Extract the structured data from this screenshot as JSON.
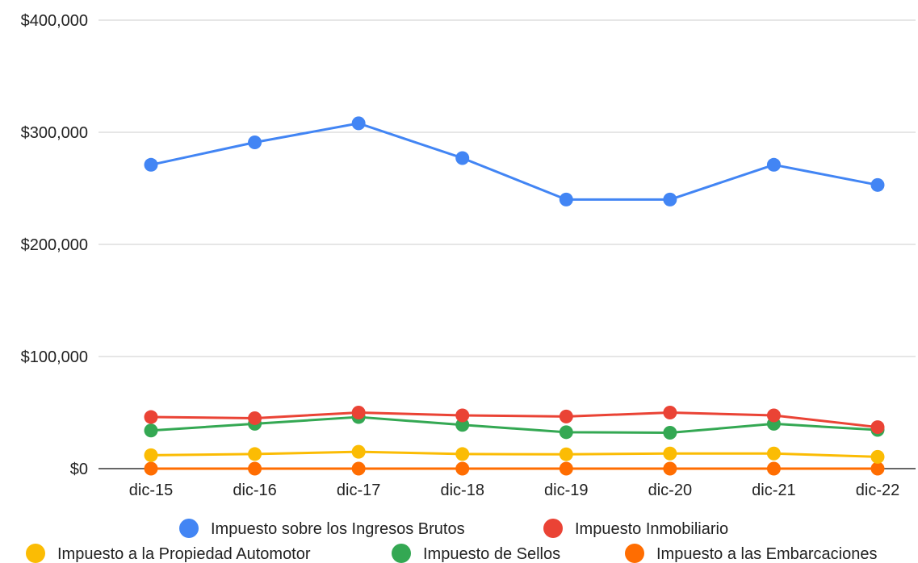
{
  "chart_data": {
    "type": "line",
    "categories": [
      "dic-15",
      "dic-16",
      "dic-17",
      "dic-18",
      "dic-19",
      "dic-20",
      "dic-21",
      "dic-22"
    ],
    "ylim": [
      0,
      400000
    ],
    "yticks": [
      0,
      100000,
      200000,
      300000,
      400000
    ],
    "ytick_labels": [
      "$0",
      "$100,000",
      "$200,000",
      "$300,000",
      "$400,000"
    ],
    "grid": true,
    "legend_position": "bottom",
    "series": [
      {
        "name": "Impuesto sobre los Ingresos Brutos",
        "color": "#4285F4",
        "values": [
          271000,
          291000,
          308000,
          277000,
          240000,
          240000,
          271000,
          253000
        ]
      },
      {
        "name": "Impuesto Inmobiliario",
        "color": "#EA4335",
        "values": [
          46000,
          45000,
          50000,
          47500,
          46500,
          50000,
          47500,
          37000
        ]
      },
      {
        "name": "Impuesto a la Propiedad Automotor",
        "color": "#FBBC04",
        "values": [
          12000,
          13000,
          15000,
          13000,
          12800,
          13500,
          13500,
          10500
        ]
      },
      {
        "name": "Impuesto de Sellos",
        "color": "#34A853",
        "values": [
          34000,
          40000,
          46000,
          39000,
          32500,
          32000,
          40000,
          34500
        ]
      },
      {
        "name": "Impuesto a las Embarcaciones",
        "color": "#FF6D01",
        "values": [
          0,
          0,
          0,
          0,
          0,
          0,
          0,
          0
        ]
      }
    ]
  }
}
